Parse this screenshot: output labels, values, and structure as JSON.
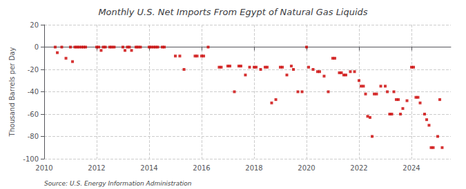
{
  "chart_data": {
    "type": "scatter",
    "title": "Monthly U.S. Net Imports From Egypt of Natural Gas Liquids",
    "ylabel": "Thousand Barrels per Day",
    "annotation": "Source: U.S. Energy Information Administration",
    "color": "#cc0000",
    "marker": "square",
    "grid": true,
    "xlim": [
      2010.0,
      2025.5
    ],
    "xticks": [
      2010,
      2012,
      2014,
      2016,
      2018,
      2020,
      2022,
      2024
    ],
    "ylim": [
      -100,
      20
    ],
    "yticks": [
      -100,
      -80,
      -60,
      -40,
      -20,
      0,
      20
    ],
    "x": [
      2010.42,
      2010.5,
      2010.67,
      2010.83,
      2011.0,
      2011.08,
      2011.17,
      2011.25,
      2011.33,
      2011.42,
      2011.5,
      2011.58,
      2012.0,
      2012.08,
      2012.17,
      2012.25,
      2012.33,
      2012.5,
      2012.58,
      2012.67,
      2013.0,
      2013.08,
      2013.17,
      2013.25,
      2013.33,
      2013.5,
      2013.58,
      2013.67,
      2014.0,
      2014.08,
      2014.17,
      2014.25,
      2014.33,
      2014.5,
      2014.58,
      2015.0,
      2015.17,
      2015.33,
      2015.75,
      2015.83,
      2016.0,
      2016.08,
      2016.25,
      2016.67,
      2016.75,
      2017.0,
      2017.08,
      2017.25,
      2017.42,
      2017.5,
      2017.67,
      2017.83,
      2018.0,
      2018.08,
      2018.25,
      2018.42,
      2018.5,
      2018.67,
      2018.83,
      2019.0,
      2019.08,
      2019.25,
      2019.42,
      2019.5,
      2019.67,
      2019.83,
      2020.0,
      2020.08,
      2020.25,
      2020.42,
      2020.5,
      2020.67,
      2020.83,
      2021.0,
      2021.08,
      2021.25,
      2021.33,
      2021.42,
      2021.5,
      2021.67,
      2021.83,
      2022.0,
      2022.08,
      2022.17,
      2022.25,
      2022.33,
      2022.42,
      2022.5,
      2022.58,
      2022.67,
      2022.83,
      2023.0,
      2023.08,
      2023.17,
      2023.25,
      2023.33,
      2023.42,
      2023.5,
      2023.58,
      2023.67,
      2023.83,
      2024.0,
      2024.08,
      2024.17,
      2024.25,
      2024.33,
      2024.5,
      2024.58,
      2024.67,
      2024.75,
      2024.83,
      2025.0,
      2025.08,
      2025.17
    ],
    "values": [
      0,
      -5,
      0,
      -10,
      0,
      -13,
      0,
      0,
      0,
      0,
      0,
      0,
      0,
      0,
      -3,
      0,
      0,
      0,
      0,
      0,
      0,
      -3,
      0,
      0,
      -3,
      0,
      0,
      0,
      0,
      0,
      0,
      0,
      0,
      0,
      0,
      -8,
      -8,
      -20,
      -8,
      -8,
      -8,
      -8,
      0,
      -18,
      -18,
      -17,
      -17,
      -40,
      -17,
      -17,
      -25,
      -18,
      -18,
      -18,
      -20,
      -18,
      -18,
      -50,
      -47,
      -18,
      -18,
      -25,
      -17,
      -20,
      -40,
      -40,
      0,
      -18,
      -20,
      -22,
      -22,
      -26,
      -40,
      -10,
      -10,
      -23,
      -23,
      -25,
      -25,
      -22,
      -22,
      -30,
      -35,
      -35,
      -42,
      -62,
      -63,
      -80,
      -42,
      -42,
      -35,
      -35,
      -40,
      -60,
      -60,
      -40,
      -47,
      -47,
      -60,
      -55,
      -48,
      -18,
      -18,
      -45,
      -45,
      -50,
      -60,
      -65,
      -70,
      -90,
      -90,
      -80,
      -47,
      -90
    ]
  }
}
